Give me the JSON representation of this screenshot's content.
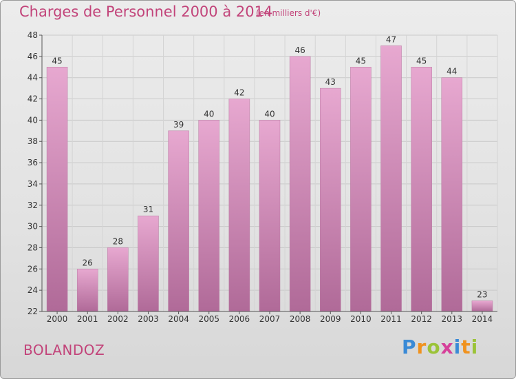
{
  "title": "Charges de Personnel 2000 à 2014",
  "subtitle": "(en milliers d'€)",
  "commune": "BOLANDOZ",
  "logo": {
    "parts": [
      "P",
      "r",
      "o",
      "x",
      "i",
      "t",
      "i"
    ]
  },
  "colors": {
    "bar_top": "#e7a8d0",
    "bar_bottom": "#b06a98",
    "accent": "#c2447a"
  },
  "chart_data": {
    "type": "bar",
    "title": "Charges de Personnel 2000 à 2014",
    "subtitle": "(en milliers d'€)",
    "xlabel": "",
    "ylabel": "",
    "categories": [
      "2000",
      "2001",
      "2002",
      "2003",
      "2004",
      "2005",
      "2006",
      "2007",
      "2008",
      "2009",
      "2010",
      "2011",
      "2012",
      "2013",
      "2014"
    ],
    "values": [
      45,
      26,
      28,
      31,
      39,
      40,
      42,
      40,
      46,
      43,
      45,
      47,
      45,
      44,
      23
    ],
    "ylim": [
      22,
      48
    ],
    "yticks": [
      "22",
      "24",
      "26",
      "28",
      "30",
      "32",
      "34",
      "36",
      "38",
      "40",
      "42",
      "44",
      "46",
      "48"
    ],
    "grid": true,
    "legend": "none"
  }
}
